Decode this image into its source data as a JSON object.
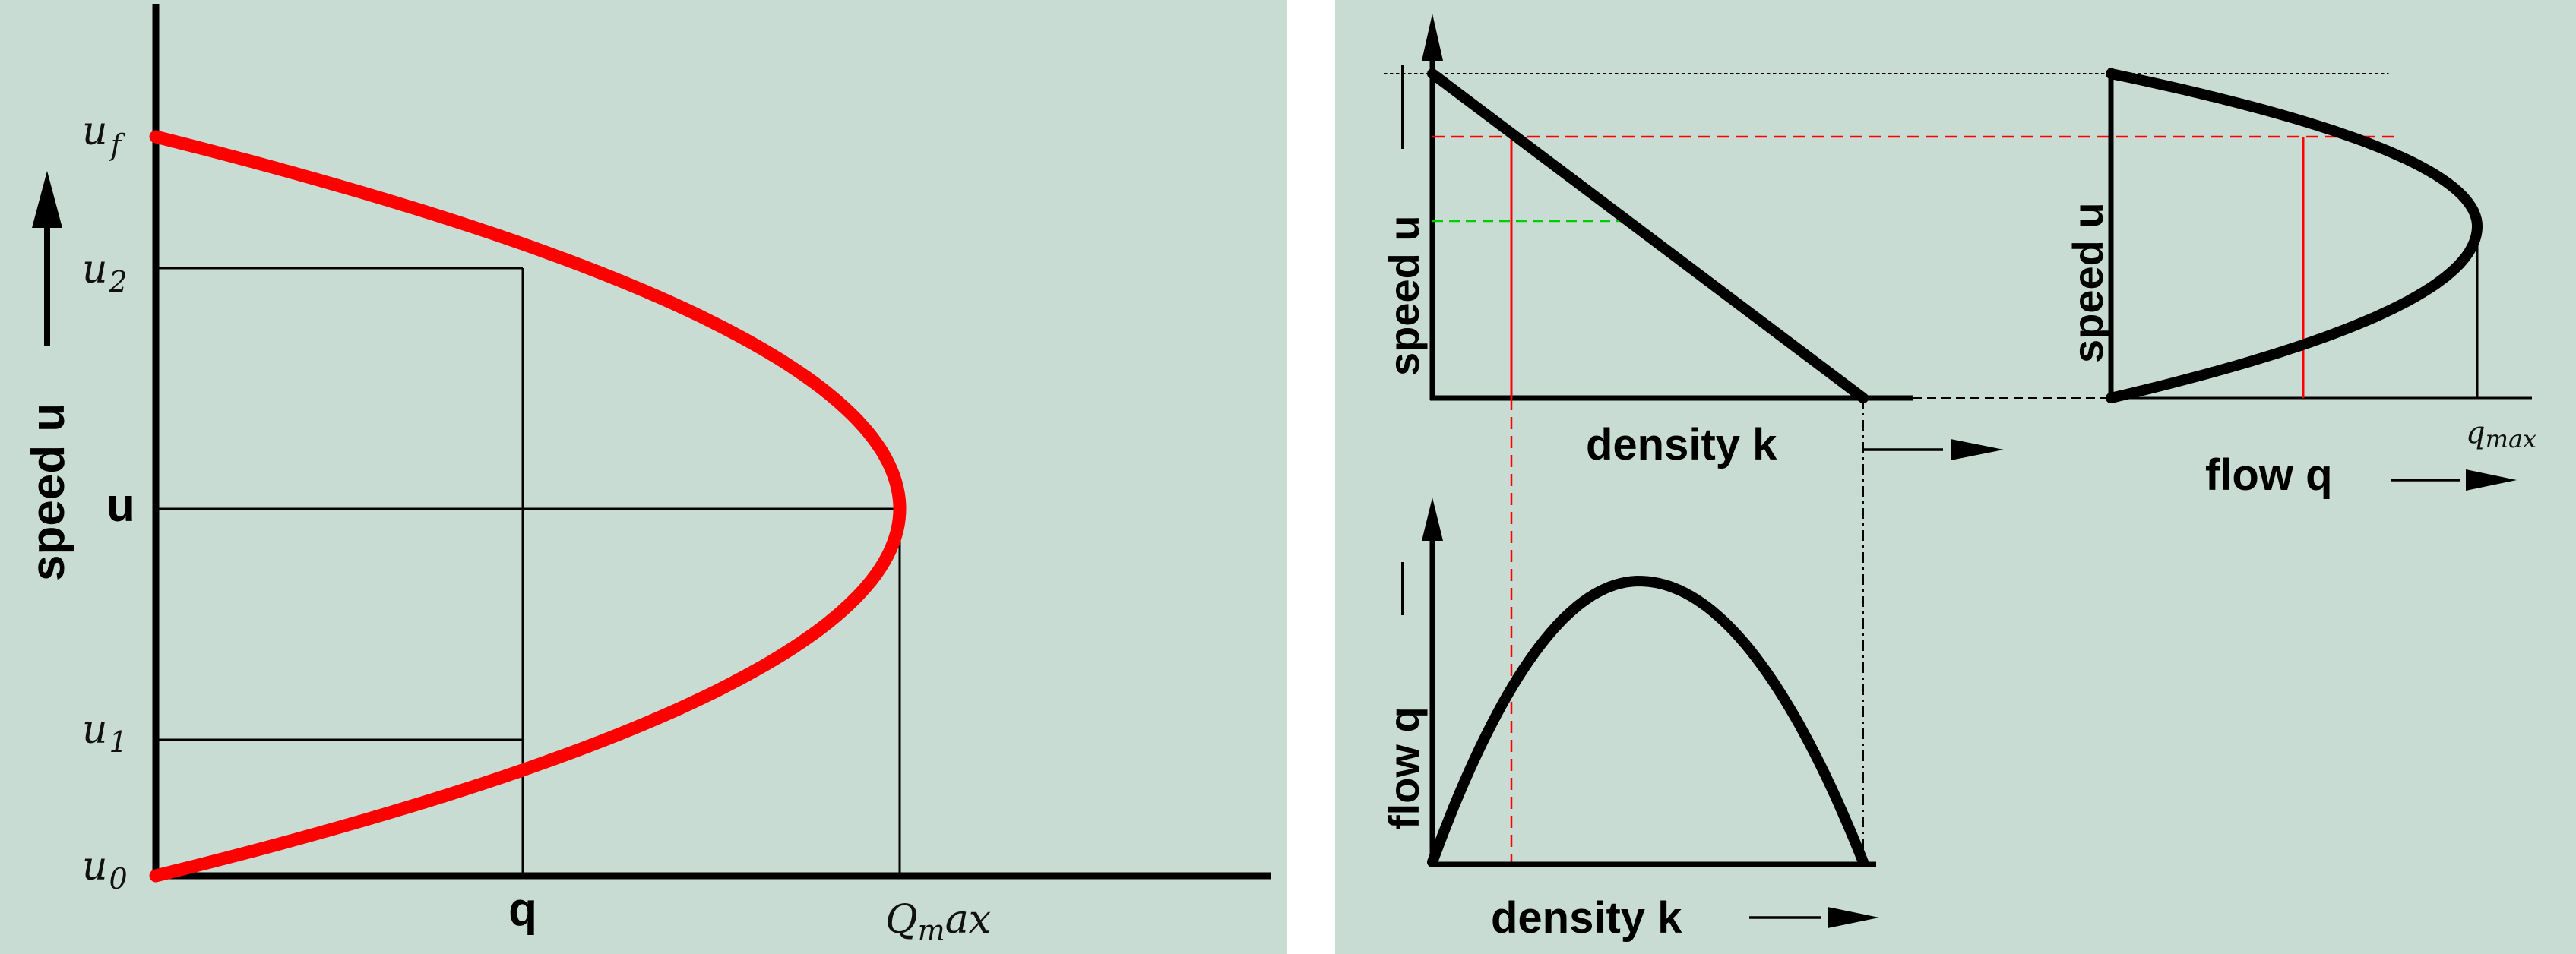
{
  "left_diagram": {
    "y_axis_label": "speed u",
    "tick_uf": "u",
    "tick_uf_sub": "f",
    "tick_u2": "u",
    "tick_u2_sub": "2",
    "tick_u": "u",
    "tick_u1": "u",
    "tick_u1_sub": "1",
    "tick_u0": "u",
    "tick_u0_sub": "0",
    "x_tick_q": "q",
    "x_tick_qmax": "Q",
    "x_tick_qmax_sub": "m",
    "x_tick_qmax_tail": "ax",
    "curve_color": "#ff0000"
  },
  "right_diagram": {
    "speed_density": {
      "y_label": "speed u",
      "x_label": "density k"
    },
    "speed_flow": {
      "y_label": "speed u",
      "x_label": "flow q",
      "tick": "q",
      "tick_sub": "max"
    },
    "flow_density": {
      "y_label": "flow q",
      "x_label": "density k"
    },
    "guide_red": "#ff0000",
    "guide_green": "#00cc00"
  }
}
